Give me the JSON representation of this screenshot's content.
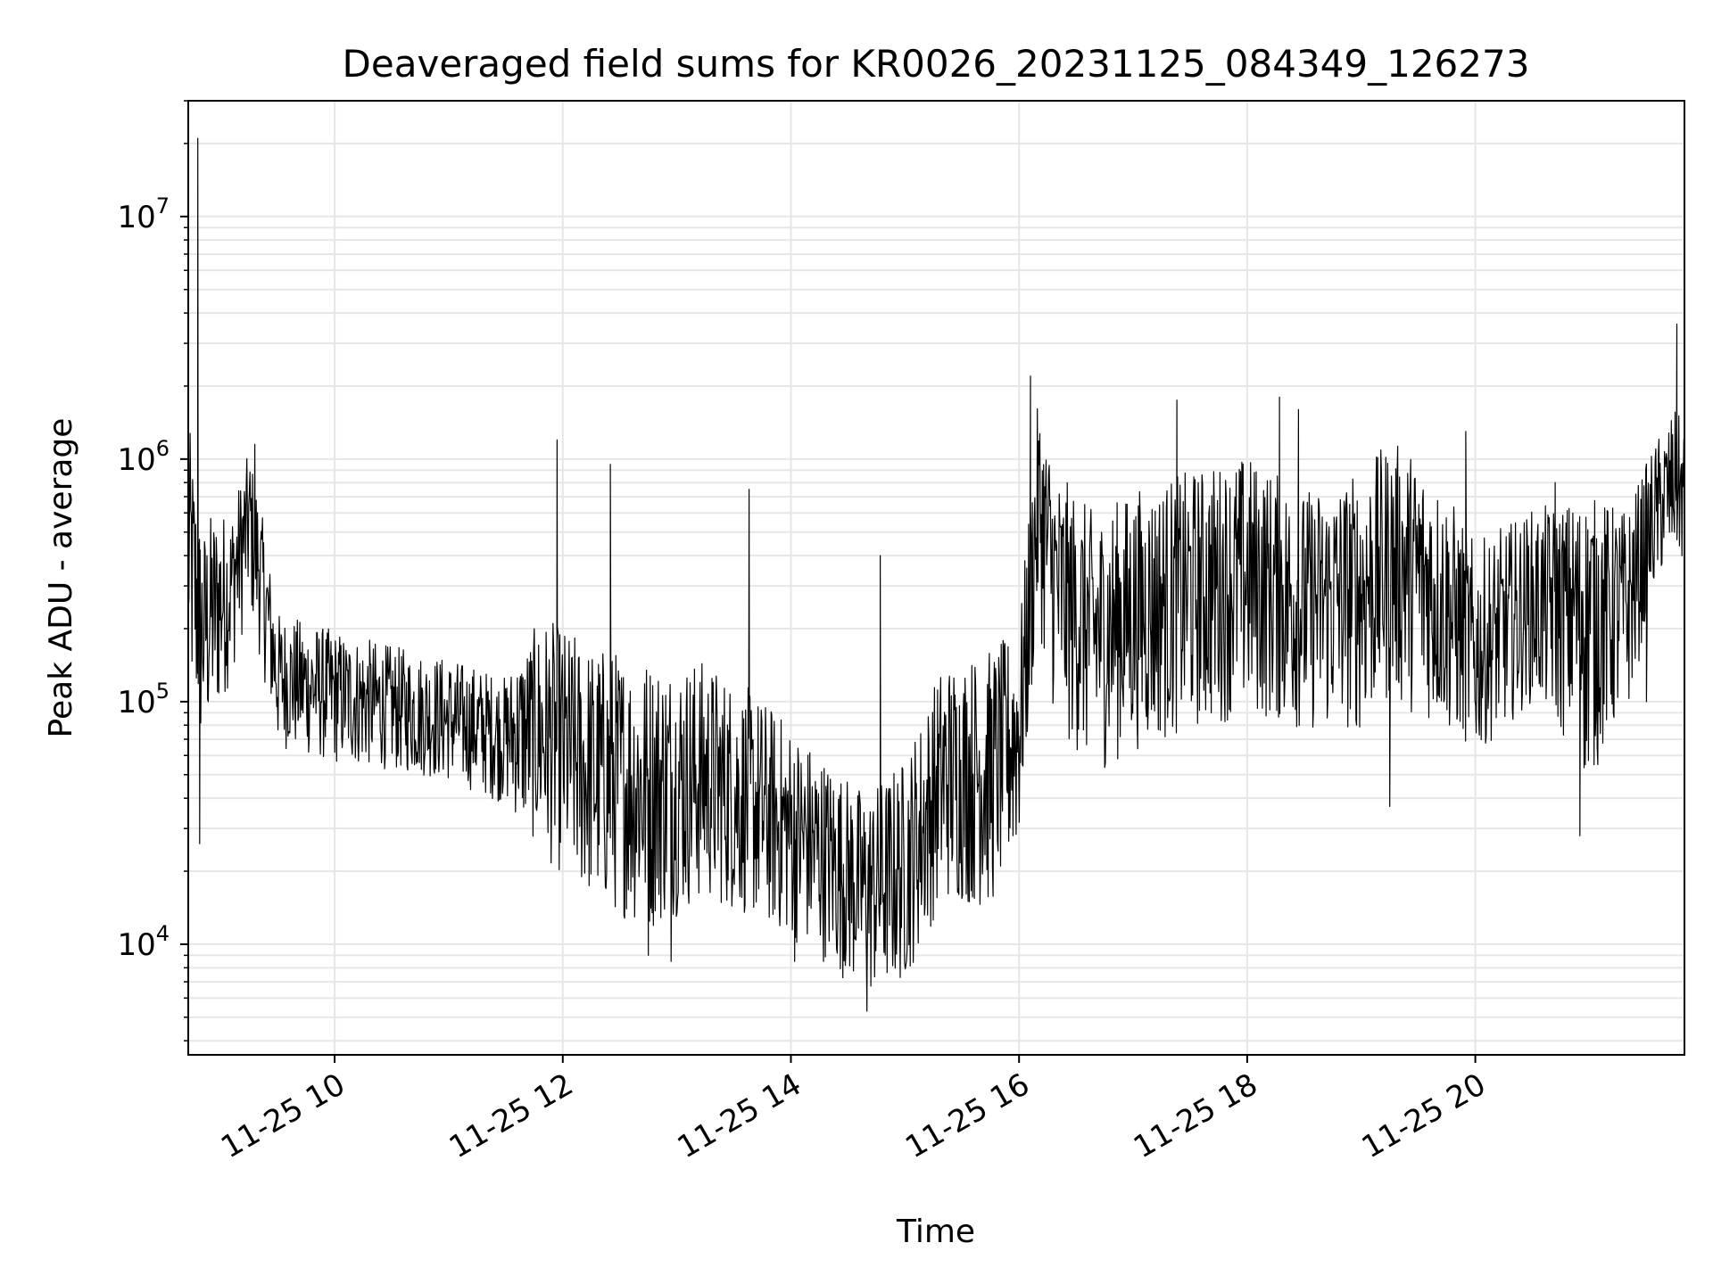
{
  "chart_data": {
    "type": "line",
    "title": "Deaveraged field sums for KR0026_20231125_084349_126273",
    "xlabel": "Time",
    "ylabel": "Peak ADU - average",
    "yscale": "log",
    "ylim": [
      3500,
      30000000
    ],
    "xlim": [
      "2023-11-25 08:43",
      "2023-11-25 21:50"
    ],
    "x_ticks": [
      "2023-11-25 10:00",
      "2023-11-25 12:00",
      "2023-11-25 14:00",
      "2023-11-25 16:00",
      "2023-11-25 18:00",
      "2023-11-25 20:00"
    ],
    "x_tick_labels": [
      "11-25 10",
      "11-25 12",
      "11-25 14",
      "11-25 16",
      "11-25 18",
      "11-25 20"
    ],
    "y_ticks": [
      10000,
      100000,
      1000000,
      10000000
    ],
    "y_tick_labels": [
      {
        "base": "10",
        "exp": "4"
      },
      {
        "base": "10",
        "exp": "5"
      },
      {
        "base": "10",
        "exp": "6"
      },
      {
        "base": "10",
        "exp": "7"
      }
    ],
    "grid": true,
    "series": [
      {
        "color": "#000000",
        "x": [
          "2023-11-25 08:43",
          "2023-11-25 08:50",
          "2023-11-25 08:56",
          "2023-11-25 09:05",
          "2023-11-25 09:15",
          "2023-11-25 09:20",
          "2023-11-25 09:30",
          "2023-11-25 10:00",
          "2023-11-25 10:30",
          "2023-11-25 11:00",
          "2023-11-25 11:30",
          "2023-11-25 11:50",
          "2023-11-25 12:15",
          "2023-11-25 12:45",
          "2023-11-25 13:15",
          "2023-11-25 13:45",
          "2023-11-25 14:15",
          "2023-11-25 14:40",
          "2023-11-25 15:00",
          "2023-11-25 15:20",
          "2023-11-25 15:45",
          "2023-11-25 16:00",
          "2023-11-25 16:10",
          "2023-11-25 16:20",
          "2023-11-25 16:40",
          "2023-11-25 17:00",
          "2023-11-25 17:30",
          "2023-11-25 18:00",
          "2023-11-25 18:30",
          "2023-11-25 19:00",
          "2023-11-25 19:15",
          "2023-11-25 19:30",
          "2023-11-25 19:45",
          "2023-11-25 20:00",
          "2023-11-25 20:30",
          "2023-11-25 21:00",
          "2023-11-25 21:20",
          "2023-11-25 21:35",
          "2023-11-25 21:45",
          "2023-11-25 21:50"
        ],
        "y": [
          500000,
          200000,
          250000,
          300000,
          600000,
          400000,
          130000,
          110000,
          95000,
          85000,
          75000,
          75000,
          50000,
          45000,
          50000,
          35000,
          25000,
          17000,
          20000,
          50000,
          55000,
          80000,
          700000,
          300000,
          200000,
          250000,
          300000,
          350000,
          250000,
          300000,
          400000,
          350000,
          250000,
          150000,
          250000,
          280000,
          250000,
          600000,
          800000,
          700000
        ],
        "spread_low": [
          0.2,
          0.3,
          0.3,
          0.4,
          0.4,
          0.4,
          0.5,
          0.5,
          0.55,
          0.55,
          0.5,
          0.3,
          0.3,
          0.25,
          0.3,
          0.35,
          0.35,
          0.35,
          0.35,
          0.3,
          0.25,
          0.3,
          0.3,
          0.25,
          0.25,
          0.25,
          0.25,
          0.25,
          0.3,
          0.25,
          0.25,
          0.25,
          0.3,
          0.4,
          0.4,
          0.15,
          0.35,
          0.5,
          0.5,
          0.5
        ],
        "spread_high": [
          3,
          2.5,
          2.5,
          2,
          1.8,
          1.8,
          1.8,
          1.8,
          1.8,
          1.8,
          1.7,
          3,
          3.5,
          3.5,
          3,
          3,
          2.5,
          2.5,
          3,
          3,
          3,
          2.5,
          2.5,
          3,
          3,
          3,
          3,
          3,
          3,
          3,
          3,
          3,
          3,
          3,
          2.5,
          2.5,
          2.5,
          2,
          2,
          2
        ],
        "spikes": [
          {
            "x": "2023-11-25 08:48",
            "y": 21000000
          },
          {
            "x": "2023-11-25 08:49",
            "y": 26000
          },
          {
            "x": "2023-11-25 09:18",
            "y": 1150000
          },
          {
            "x": "2023-11-25 11:57",
            "y": 1200000
          },
          {
            "x": "2023-11-25 12:25",
            "y": 950000
          },
          {
            "x": "2023-11-25 12:45",
            "y": 9000
          },
          {
            "x": "2023-11-25 12:57",
            "y": 8500
          },
          {
            "x": "2023-11-25 13:38",
            "y": 750000
          },
          {
            "x": "2023-11-25 14:02",
            "y": 8500
          },
          {
            "x": "2023-11-25 14:40",
            "y": 5300
          },
          {
            "x": "2023-11-25 14:47",
            "y": 400000
          },
          {
            "x": "2023-11-25 16:06",
            "y": 2200000
          },
          {
            "x": "2023-11-25 17:23",
            "y": 1750000
          },
          {
            "x": "2023-11-25 18:17",
            "y": 1800000
          },
          {
            "x": "2023-11-25 18:27",
            "y": 1600000
          },
          {
            "x": "2023-11-25 19:15",
            "y": 37000
          },
          {
            "x": "2023-11-25 19:55",
            "y": 1300000
          },
          {
            "x": "2023-11-25 20:42",
            "y": 800000
          },
          {
            "x": "2023-11-25 20:55",
            "y": 28000
          },
          {
            "x": "2023-11-25 21:30",
            "y": 100000
          },
          {
            "x": "2023-11-25 21:46",
            "y": 3600000
          }
        ]
      }
    ]
  }
}
